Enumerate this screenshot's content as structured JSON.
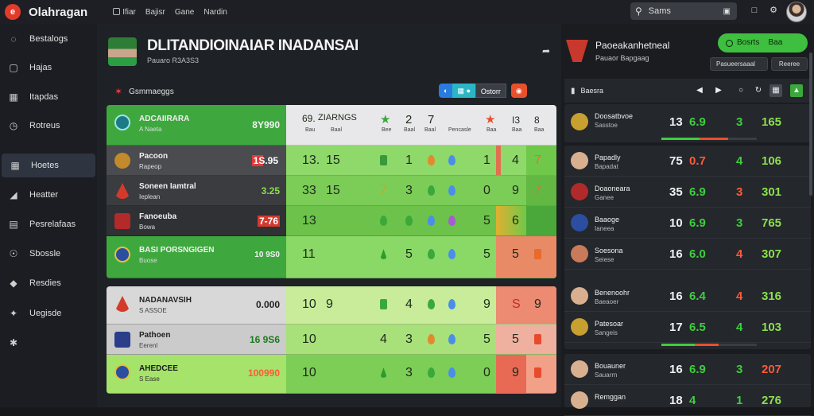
{
  "app": {
    "title": "Olahragan",
    "logo": "e"
  },
  "topnav": [
    "Ifiar",
    "Bajisr",
    "Gane",
    "Nardin"
  ],
  "search": {
    "label": "Sams"
  },
  "sidebar": {
    "items": [
      {
        "label": "Bestalogs",
        "icon": "globe-icon"
      },
      {
        "label": "Hajas",
        "icon": "box-icon"
      },
      {
        "label": "Itapdas",
        "icon": "calendar-icon"
      },
      {
        "label": "Rotreus",
        "icon": "clock-icon"
      },
      {
        "label": "Hoetes",
        "icon": "grid-icon",
        "active": true
      },
      {
        "label": "Heatter",
        "icon": "chart-icon"
      },
      {
        "label": "Pesrelafaas",
        "icon": "list-icon"
      },
      {
        "label": "Sbossle",
        "icon": "info-icon"
      },
      {
        "label": "Resdies",
        "icon": "tag-icon"
      },
      {
        "label": "Uegisde",
        "icon": "puzzle-icon"
      },
      {
        "label": "",
        "icon": "tools-icon"
      }
    ]
  },
  "hero": {
    "title": "DLITANDIOINAIAR INADANSAI",
    "subtitle": "Pauaro R3A3S3"
  },
  "panel": {
    "title": "Gsmmaeggs",
    "pill_3": "Ostorr"
  },
  "table_header": {
    "h1": "69.",
    "h2": "ZIARNGS",
    "l1": "Bau",
    "l2": "Baal",
    "n1": "2",
    "n2": "7",
    "n3": "I3",
    "n4": "8",
    "lb1": "Bee",
    "lb2": "Baal",
    "lb3": "Pencasle",
    "lb4": "Baa",
    "lb5": "Baa"
  },
  "rows_top": [
    {
      "name": "ADCAIIRARA",
      "sub": "A Naeta",
      "score": "8Y990",
      "score_color": "#f2f2f2",
      "a": "",
      "b": "",
      "c": "",
      "d": "",
      "e": "",
      "lcolor": "#3ea83e",
      "crest": "#1a7b86"
    },
    {
      "name": "Pacoon",
      "sub": "Rapeop",
      "score": "1S.95",
      "score_color": "#ffffff",
      "a": "13.",
      "b": "15",
      "c": "1",
      "d": "1",
      "e": "4",
      "f": "7",
      "lcolor": "#4a4c50",
      "crest": "#c28a2a"
    },
    {
      "name": "Soneen Iamtral",
      "sub": "Ieplean",
      "score": "3.25",
      "score_color": "#8be04c",
      "a": "33",
      "b": "15",
      "c": "3",
      "d": "0",
      "e": "9",
      "f": "7",
      "lcolor": "#3a3c40",
      "crest": "#d43a2a"
    },
    {
      "name": "Fanoeuba",
      "sub": "Bowa",
      "score": "7-76",
      "score_color": "#ff6e5a",
      "a": "13",
      "b": "",
      "c": "",
      "d": "5",
      "e": "6",
      "f": "",
      "lcolor": "#2f3135",
      "crest": "#b22a2a"
    },
    {
      "name": "BASI PORSNGIGEN",
      "sub": "Buose",
      "score": "10 9S0",
      "score_color": "#f2f2f2",
      "a": "11",
      "b": "",
      "c": "5",
      "d": "5",
      "e": "5",
      "f": "",
      "lcolor": "#3ea83e",
      "crest": "#2b4ea0"
    }
  ],
  "rows_bottom": [
    {
      "name": "NADANAVSIH",
      "sub": "S ASSOE",
      "score": "0.000",
      "score_color": "#222",
      "a": "10",
      "b": "9",
      "c": "4",
      "d": "9",
      "e": "S",
      "f": "9",
      "lcolor": "#d8d8d8",
      "crest": "#d43a2a"
    },
    {
      "name": "Pathoen",
      "sub": "Eerenl",
      "score": "16 9S6",
      "score_color": "#1d7a1d",
      "a": "10",
      "b": "",
      "c": "3",
      "d": "5",
      "e": "5",
      "f": "",
      "lcolor": "#cbcbcb",
      "crest": "#2b3e8a"
    },
    {
      "name": "AHEDCEE",
      "sub": "S Ease",
      "score": "100990",
      "score_color": "#ff5a3a",
      "a": "10",
      "b": "",
      "c": "3",
      "d": "0",
      "e": "9",
      "f": "",
      "lcolor": "#a6e36a",
      "crest": "#2b4ea0"
    }
  ],
  "right_panel": {
    "title": "Paoeakanhetneal",
    "subtitle": "Pauaor Bapgaag",
    "green_btn": "Bosrts",
    "green_btn_suffix": "Baa",
    "btn1": "Pasueersaaal",
    "btn2": "Reeree",
    "list_title": "Baesra",
    "rows": [
      {
        "name": "Doosatbvoe",
        "sub": "Sasstoe",
        "n1": "13",
        "n2": "6.9",
        "n2c": "#3dcf3d",
        "n3": "3",
        "n3c": "#3dcf3d",
        "n4": "165",
        "n4c": "#8be04c"
      },
      {
        "name": "Papadly",
        "sub": "Bapadat",
        "n1": "75",
        "n2": "0.7",
        "n2c": "#ff5a3a",
        "n3": "4",
        "n3c": "#3dcf3d",
        "n4": "106",
        "n4c": "#8be04c"
      },
      {
        "name": "Doaoneara",
        "sub": "Ganee",
        "n1": "35",
        "n2": "6.9",
        "n2c": "#3dcf3d",
        "n3": "3",
        "n3c": "#ff5a3a",
        "n4": "301",
        "n4c": "#8be04c"
      },
      {
        "name": "Baaoge",
        "sub": "Ianeea",
        "n1": "10",
        "n2": "6.9",
        "n2c": "#3dcf3d",
        "n3": "3",
        "n3c": "#3dcf3d",
        "n4": "765",
        "n4c": "#8be04c"
      },
      {
        "name": "Soesona",
        "sub": "Seiese",
        "n1": "16",
        "n2": "6.0",
        "n2c": "#3dcf3d",
        "n3": "4",
        "n3c": "#ff5a3a",
        "n4": "307",
        "n4c": "#8be04c"
      },
      {
        "name": "Benenoohr",
        "sub": "Baeaoer",
        "n1": "16",
        "n2": "6.4",
        "n2c": "#3dcf3d",
        "n3": "4",
        "n3c": "#ff5a3a",
        "n4": "316",
        "n4c": "#8be04c"
      },
      {
        "name": "Patesoar",
        "sub": "Sangeis",
        "n1": "17",
        "n2": "6.5",
        "n2c": "#3dcf3d",
        "n3": "4",
        "n3c": "#3dcf3d",
        "n4": "103",
        "n4c": "#8be04c"
      },
      {
        "name": "Bouauner",
        "sub": "Sauarrn",
        "n1": "16",
        "n2": "6.9",
        "n2c": "#3dcf3d",
        "n3": "3",
        "n3c": "#3dcf3d",
        "n4": "207",
        "n4c": "#ff5a3a"
      },
      {
        "name": "Remggan",
        "sub": "",
        "n1": "18",
        "n2": "4",
        "n2c": "#3dcf3d",
        "n3": "1",
        "n3c": "#3dcf3d",
        "n4": "276",
        "n4c": "#8be04c"
      }
    ]
  }
}
